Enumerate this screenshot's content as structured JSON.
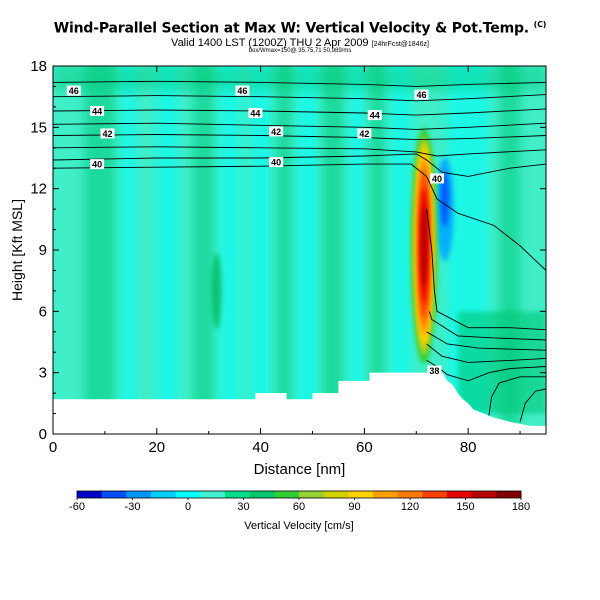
{
  "header": {
    "title": "Wind-Parallel Section at Max W: Vertical Velocity & Pot.Temp.",
    "copyright": "(C)",
    "subtitle": "Valid 1400 LST (1200Z) THU 2 Apr 2009",
    "subtitle_note": "[24hrFcst@1846z]",
    "meta": "box/Wmax=150@ 35.75,71 50,989/ms"
  },
  "chart_data": {
    "type": "contour",
    "xlabel": "Distance [nm]",
    "ylabel": "Height [Kft MSL]",
    "xlim": [
      0,
      95
    ],
    "ylim": [
      0,
      18
    ],
    "xticks": [
      0,
      20,
      40,
      60,
      80
    ],
    "yticks": [
      0,
      3,
      6,
      9,
      12,
      15,
      18
    ],
    "colorbar": {
      "label": "Vertical Velocity [cm/s]",
      "ticks": [
        -60,
        -30,
        0,
        30,
        60,
        90,
        120,
        150,
        180
      ],
      "colors": [
        "#0000c8",
        "#0050ff",
        "#0096ff",
        "#00d0ff",
        "#00ffff",
        "#40f0d0",
        "#00e08c",
        "#00c86e",
        "#32cd32",
        "#96d232",
        "#d2d200",
        "#ffd200",
        "#ffa000",
        "#ff7800",
        "#ff4000",
        "#e60000",
        "#b40000",
        "#820000"
      ]
    },
    "terrain": [
      [
        0,
        1.7
      ],
      [
        39,
        1.7
      ],
      [
        39,
        2.0
      ],
      [
        45,
        2.0
      ],
      [
        45,
        1.7
      ],
      [
        50,
        1.7
      ],
      [
        50,
        2.0
      ],
      [
        55,
        2.0
      ],
      [
        55,
        2.6
      ],
      [
        61,
        2.6
      ],
      [
        61,
        3.0
      ],
      [
        75,
        3.0
      ],
      [
        76,
        2.6
      ],
      [
        77,
        2.4
      ],
      [
        78,
        2.0
      ],
      [
        79,
        1.7
      ],
      [
        80,
        1.5
      ],
      [
        81,
        1.2
      ],
      [
        83,
        1.0
      ],
      [
        85,
        0.8
      ],
      [
        88,
        0.6
      ],
      [
        92,
        0.4
      ],
      [
        95,
        0.4
      ]
    ],
    "updraft_core": {
      "x": 71.5,
      "y": 9.0,
      "max": 150
    },
    "downdraft": {
      "x": 75.5,
      "y": 11.0,
      "min": -60
    },
    "isentrope_labels": [
      {
        "value": "46",
        "x": 4,
        "y": 16.8
      },
      {
        "value": "46",
        "x": 36.5,
        "y": 16.8
      },
      {
        "value": "46",
        "x": 71,
        "y": 16.6
      },
      {
        "value": "44",
        "x": 8.5,
        "y": 15.8
      },
      {
        "value": "44",
        "x": 39,
        "y": 15.7
      },
      {
        "value": "44",
        "x": 62,
        "y": 15.6
      },
      {
        "value": "42",
        "x": 10.5,
        "y": 14.7
      },
      {
        "value": "42",
        "x": 43,
        "y": 14.8
      },
      {
        "value": "42",
        "x": 60,
        "y": 14.7
      },
      {
        "value": "40",
        "x": 8.5,
        "y": 13.2
      },
      {
        "value": "40",
        "x": 43,
        "y": 13.3
      },
      {
        "value": "40",
        "x": 74,
        "y": 12.5
      },
      {
        "value": "38",
        "x": 73.5,
        "y": 3.1
      }
    ]
  }
}
